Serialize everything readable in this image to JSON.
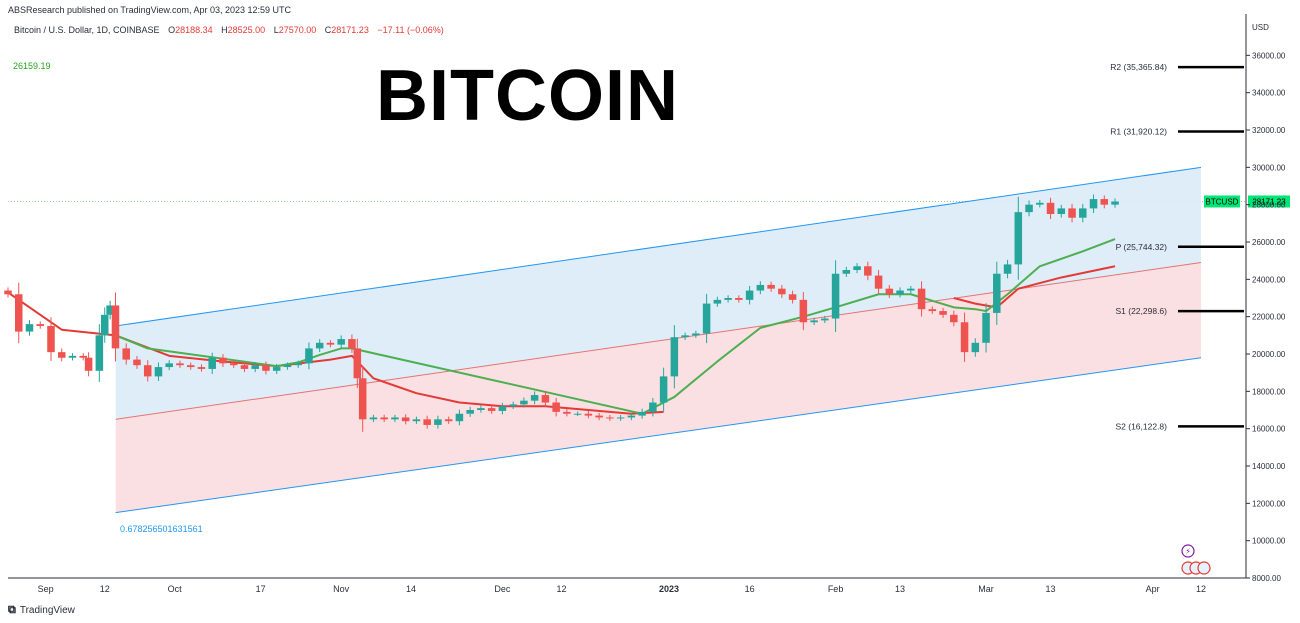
{
  "header": {
    "publisher": "ABSResearch published on TradingView.com, Apr 03, 2023 12:59 UTC"
  },
  "legend": {
    "symbol": "Bitcoin / U.S. Dollar, 1D, COINBASE",
    "o_label": "O",
    "o": "28188.34",
    "h_label": "H",
    "h": "28525.00",
    "l_label": "L",
    "l": "27570.00",
    "c_label": "C",
    "c": "28171.23",
    "change": "−17.11 (−0.06%)"
  },
  "ma_value": "26159.19",
  "title": "BITCOIN",
  "currency": "USD",
  "regression_label": "0.678256501631561",
  "footer": {
    "brand": "TradingView"
  },
  "colors": {
    "up": "#26a69a",
    "down": "#ef5350",
    "ma_fast": "#4caf50",
    "ma_slow": "#e53935",
    "channel_top": "#2196f3",
    "channel_fill_upper": "#dcebf8",
    "channel_fill_lower": "#fbdde0",
    "price_badge": "#00e676"
  },
  "chart_data": {
    "type": "candlestick",
    "y_axis": {
      "min": 8000,
      "max": 38000,
      "ticks": [
        8000,
        10000,
        12000,
        14000,
        16000,
        18000,
        20000,
        22000,
        24000,
        26000,
        28000,
        30000,
        32000,
        34000,
        36000
      ],
      "tick_labels": [
        "8000.00",
        "10000.00",
        "12000.00",
        "14000.00",
        "16000.00",
        "18000.00",
        "20000.00",
        "22000.00",
        "24000.00",
        "26000.00",
        "28000.00",
        "30000.00",
        "32000.00",
        "34000.00",
        "36000.00"
      ]
    },
    "x_axis": {
      "labels": [
        {
          "text": "Sep",
          "day": 7
        },
        {
          "text": "12",
          "day": 18
        },
        {
          "text": "Oct",
          "day": 31
        },
        {
          "text": "17",
          "day": 47
        },
        {
          "text": "Nov",
          "day": 62
        },
        {
          "text": "14",
          "day": 75
        },
        {
          "text": "Dec",
          "day": 92
        },
        {
          "text": "12",
          "day": 103
        },
        {
          "text": "2023",
          "day": 123
        },
        {
          "text": "16",
          "day": 138
        },
        {
          "text": "Feb",
          "day": 154
        },
        {
          "text": "13",
          "day": 166
        },
        {
          "text": "Mar",
          "day": 182
        },
        {
          "text": "13",
          "day": 194
        },
        {
          "text": "Apr",
          "day": 213
        },
        {
          "text": "12",
          "day": 222
        }
      ]
    },
    "pivots": [
      {
        "name": "R2",
        "label": "R2 (35,365.84)",
        "value": 35365.84
      },
      {
        "name": "R1",
        "label": "R1 (31,920.12)",
        "value": 31920.12
      },
      {
        "name": "P",
        "label": "P (25,744.32)",
        "value": 25744.32
      },
      {
        "name": "S1",
        "label": "S1 (22,298.6)",
        "value": 22298.6
      },
      {
        "name": "S2",
        "label": "S2 (16,122.8)",
        "value": 16122.8
      }
    ],
    "last_price": {
      "symbol": "BTCUSD",
      "value": 28171.23
    },
    "regression_channel": {
      "start_day": 20,
      "end_day": 222,
      "upper": [
        21500,
        30000
      ],
      "mid": [
        16500,
        24900
      ],
      "lower": [
        11500,
        19800
      ]
    },
    "closes": [
      [
        0,
        23200
      ],
      [
        2,
        21200
      ],
      [
        4,
        21600
      ],
      [
        6,
        21500
      ],
      [
        8,
        20100
      ],
      [
        10,
        19800
      ],
      [
        12,
        19900
      ],
      [
        14,
        19800
      ],
      [
        15,
        19100
      ],
      [
        17,
        21000
      ],
      [
        18,
        22100
      ],
      [
        19,
        22600
      ],
      [
        20,
        20300
      ],
      [
        22,
        19700
      ],
      [
        24,
        19400
      ],
      [
        26,
        18800
      ],
      [
        28,
        19300
      ],
      [
        30,
        19500
      ],
      [
        32,
        19400
      ],
      [
        34,
        19300
      ],
      [
        36,
        19200
      ],
      [
        38,
        19800
      ],
      [
        40,
        19500
      ],
      [
        42,
        19400
      ],
      [
        44,
        19200
      ],
      [
        46,
        19400
      ],
      [
        48,
        19100
      ],
      [
        50,
        19300
      ],
      [
        52,
        19400
      ],
      [
        54,
        19500
      ],
      [
        56,
        20300
      ],
      [
        58,
        20600
      ],
      [
        60,
        20500
      ],
      [
        62,
        20800
      ],
      [
        64,
        20300
      ],
      [
        65,
        18700
      ],
      [
        66,
        16500
      ],
      [
        68,
        16600
      ],
      [
        70,
        16500
      ],
      [
        72,
        16600
      ],
      [
        74,
        16400
      ],
      [
        76,
        16500
      ],
      [
        78,
        16200
      ],
      [
        80,
        16500
      ],
      [
        82,
        16400
      ],
      [
        84,
        16800
      ],
      [
        86,
        17000
      ],
      [
        88,
        17100
      ],
      [
        90,
        16950
      ],
      [
        92,
        17200
      ],
      [
        94,
        17300
      ],
      [
        96,
        17500
      ],
      [
        98,
        17800
      ],
      [
        100,
        17400
      ],
      [
        102,
        16900
      ],
      [
        104,
        16800
      ],
      [
        106,
        16800
      ],
      [
        108,
        16700
      ],
      [
        110,
        16600
      ],
      [
        112,
        16550
      ],
      [
        114,
        16600
      ],
      [
        116,
        16700
      ],
      [
        118,
        16900
      ],
      [
        120,
        17400
      ],
      [
        122,
        18800
      ],
      [
        124,
        20900
      ],
      [
        126,
        21000
      ],
      [
        128,
        21100
      ],
      [
        130,
        22700
      ],
      [
        132,
        22900
      ],
      [
        134,
        23000
      ],
      [
        136,
        22900
      ],
      [
        138,
        23400
      ],
      [
        140,
        23700
      ],
      [
        142,
        23500
      ],
      [
        144,
        23200
      ],
      [
        146,
        22900
      ],
      [
        148,
        21700
      ],
      [
        150,
        21800
      ],
      [
        152,
        21900
      ],
      [
        154,
        24300
      ],
      [
        156,
        24500
      ],
      [
        158,
        24700
      ],
      [
        160,
        24200
      ],
      [
        162,
        23500
      ],
      [
        164,
        23200
      ],
      [
        166,
        23400
      ],
      [
        168,
        23500
      ],
      [
        170,
        22400
      ],
      [
        172,
        22300
      ],
      [
        174,
        22100
      ],
      [
        176,
        21700
      ],
      [
        178,
        20100
      ],
      [
        180,
        20600
      ],
      [
        182,
        22200
      ],
      [
        184,
        24300
      ],
      [
        186,
        24800
      ],
      [
        188,
        27600
      ],
      [
        190,
        28000
      ],
      [
        192,
        28100
      ],
      [
        194,
        27500
      ],
      [
        196,
        27800
      ],
      [
        198,
        27300
      ],
      [
        200,
        27800
      ],
      [
        202,
        28300
      ],
      [
        204,
        28000
      ],
      [
        206,
        28171
      ]
    ],
    "ma_slow": [
      [
        0,
        23300
      ],
      [
        10,
        21300
      ],
      [
        20,
        21000
      ],
      [
        30,
        19900
      ],
      [
        40,
        19600
      ],
      [
        50,
        19350
      ],
      [
        60,
        19700
      ],
      [
        64,
        19900
      ],
      [
        68,
        18700
      ],
      [
        76,
        17900
      ],
      [
        84,
        17400
      ],
      [
        92,
        17200
      ],
      [
        100,
        17200
      ],
      [
        108,
        17000
      ],
      [
        116,
        16800
      ],
      [
        122,
        16900
      ]
    ],
    "ma_slow_tail": [
      [
        176,
        23000
      ],
      [
        180,
        22700
      ],
      [
        184,
        22500
      ],
      [
        188,
        23500
      ],
      [
        196,
        24100
      ],
      [
        206,
        24700
      ]
    ],
    "ma_fast": [
      [
        20,
        21000
      ],
      [
        26,
        20300
      ],
      [
        50,
        19350
      ],
      [
        54,
        19550
      ],
      [
        58,
        19950
      ],
      [
        62,
        20300
      ],
      [
        64,
        20300
      ],
      [
        118,
        16800
      ],
      [
        124,
        17700
      ],
      [
        132,
        19600
      ],
      [
        140,
        21400
      ],
      [
        148,
        22000
      ],
      [
        154,
        22500
      ],
      [
        162,
        23200
      ],
      [
        168,
        23200
      ],
      [
        176,
        22500
      ],
      [
        180,
        22400
      ],
      [
        182,
        22300
      ],
      [
        186,
        23200
      ],
      [
        192,
        24700
      ],
      [
        200,
        25500
      ],
      [
        206,
        26159
      ]
    ]
  }
}
